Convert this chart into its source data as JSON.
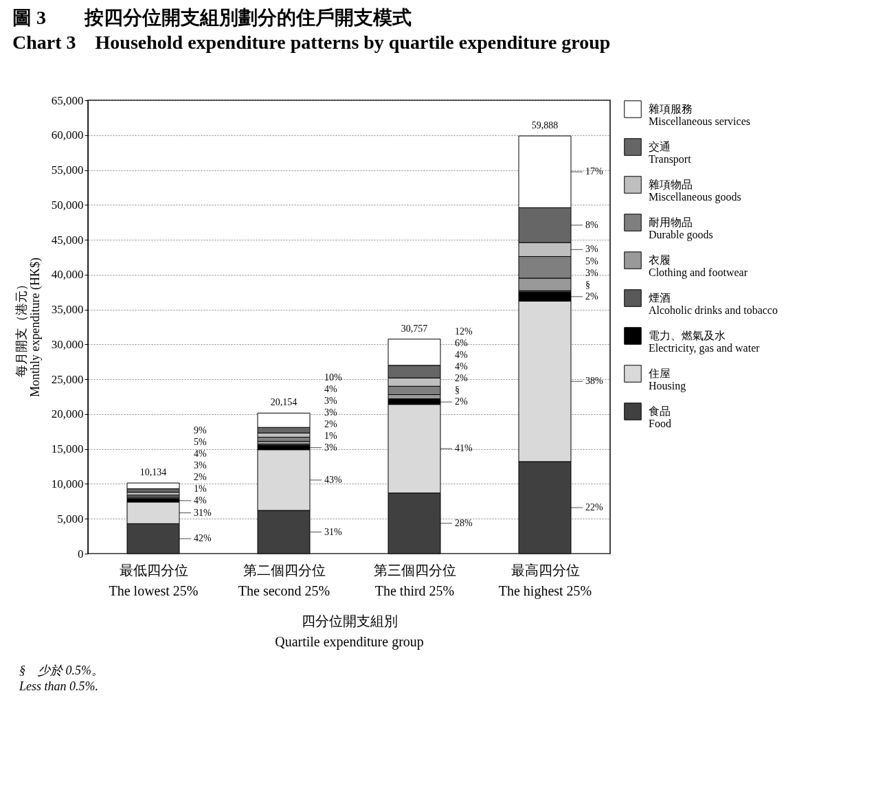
{
  "chart_data": {
    "type": "bar",
    "title": "圖 3　　按四分位開支組別劃分的住戶開支模式",
    "subtitle": "Chart 3　Household expenditure patterns by quartile expenditure group",
    "xlabel": "四分位開支組別\nQuartile expenditure group",
    "ylabel": "每月開支（港元）\nMonthly expenditure (HK$)",
    "categories": [
      "最低四分位\nThe lowest 25%",
      "第二個四分位\nThe second 25%",
      "第三個四分位\nThe third 25%",
      "最高四分位\nThe highest 25%"
    ],
    "stacked": true,
    "ylim": [
      0,
      65000
    ],
    "yticks": [
      {
        "value": 0,
        "label": "0"
      },
      {
        "value": 5000,
        "label": "5,000"
      },
      {
        "value": 10000,
        "label": "10,000"
      },
      {
        "value": 15000,
        "label": "15,000"
      },
      {
        "value": 20000,
        "label": "20,000"
      },
      {
        "value": 25000,
        "label": "25,000"
      },
      {
        "value": 30000,
        "label": "30,000"
      },
      {
        "value": 35000,
        "label": "35,000"
      },
      {
        "value": 40000,
        "label": "40,000"
      },
      {
        "value": 45000,
        "label": "45,000"
      },
      {
        "value": 50000,
        "label": "50,000"
      },
      {
        "value": 55000,
        "label": "55,000"
      },
      {
        "value": 60000,
        "label": "60,000"
      },
      {
        "value": 65000,
        "label": "65,000"
      }
    ],
    "grid": "y",
    "legend": "right",
    "totals": [
      "10,134",
      "20,154",
      "30,757",
      "59,888"
    ],
    "series": [
      {
        "name": "食品\nFood",
        "color": "#404040",
        "values": [
          4300,
          6200,
          8700,
          13200
        ]
      },
      {
        "name": "住屋\nHousing",
        "color": "#d9d9d9",
        "values": [
          3100,
          8700,
          12700,
          23000
        ]
      },
      {
        "name": "電力、燃氣及水\nElectricity, gas and water",
        "color": "#000000",
        "values": [
          400,
          600,
          700,
          1300
        ]
      },
      {
        "name": "煙酒\nAlcoholic drinks and tobacco",
        "color": "#595959",
        "values": [
          100,
          200,
          100,
          200
        ]
      },
      {
        "name": "衣履\nClothing and footwear",
        "color": "#999999",
        "values": [
          200,
          400,
          600,
          1800
        ]
      },
      {
        "name": "耐用物品\nDurable goods",
        "color": "#7f7f7f",
        "values": [
          300,
          600,
          1200,
          3100
        ]
      },
      {
        "name": "雜項物品\nMiscellaneous goods",
        "color": "#bfbfbf",
        "values": [
          400,
          600,
          1200,
          2000
        ]
      },
      {
        "name": "交通\nTransport",
        "color": "#666666",
        "values": [
          500,
          800,
          1800,
          5000
        ]
      },
      {
        "name": "雜項服務\nMiscellaneous services",
        "color": "#ffffff",
        "values": [
          834,
          2054,
          3757,
          10288
        ]
      }
    ],
    "annotations": [
      "42%",
      "31%",
      "4%",
      "1%",
      "2%",
      "3%",
      "4%",
      "5%",
      "9%",
      "31%",
      "43%",
      "3%",
      "1%",
      "2%",
      "3%",
      "3%",
      "4%",
      "10%",
      "28%",
      "41%",
      "2%",
      "§",
      "2%",
      "4%",
      "4%",
      "6%",
      "12%",
      "22%",
      "38%",
      "2%",
      "§",
      "3%",
      "5%",
      "3%",
      "8%",
      "17%",
      "§　少於 0.5%。",
      "Less than 0.5%."
    ]
  }
}
